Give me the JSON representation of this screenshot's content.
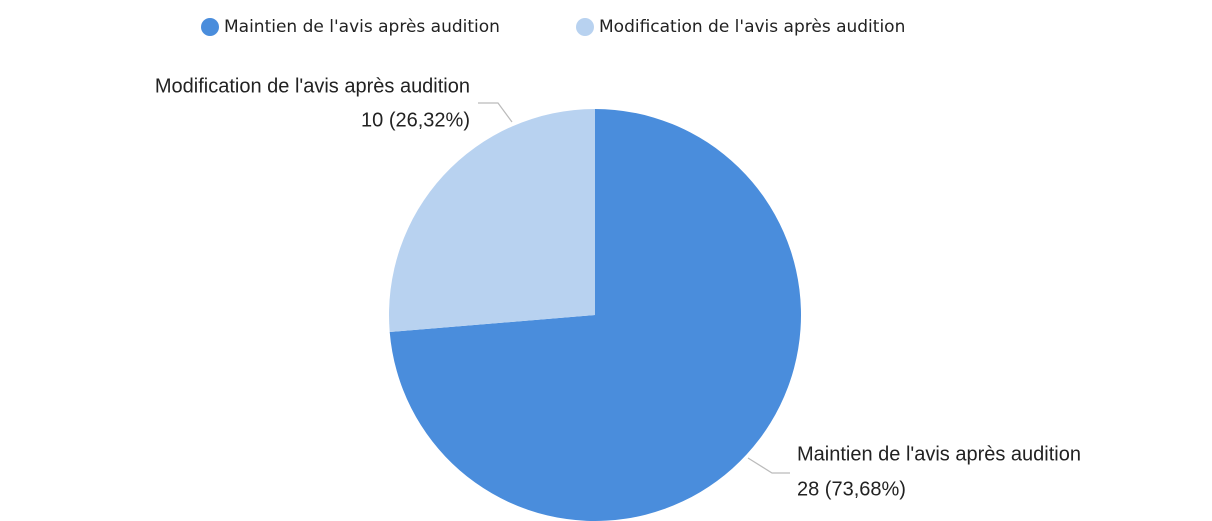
{
  "chart_data": {
    "type": "pie",
    "categories": [
      "Maintien de l'avis après audition",
      "Modification de l'avis après audition"
    ],
    "values": [
      28,
      10
    ],
    "value_labels": [
      "28 (73,68%)",
      "10 (26,32%)"
    ],
    "colors": [
      "#4a8ddc",
      "#b8d2f0"
    ],
    "legend": "top"
  }
}
